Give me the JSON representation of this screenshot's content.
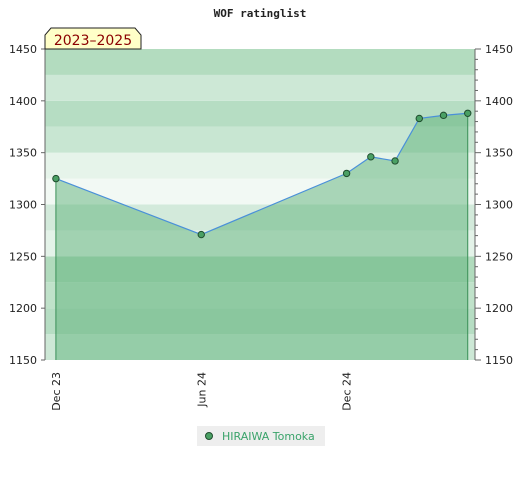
{
  "chart_data": {
    "type": "area",
    "title": "WOF ratinglist",
    "period_badge": "2023–2025",
    "ylim": [
      1150,
      1450
    ],
    "y_ticks": [
      1150,
      1200,
      1250,
      1300,
      1350,
      1400,
      1450
    ],
    "x_ticks": [
      {
        "label": "Dec 23",
        "pos": 0
      },
      {
        "label": "Jun 24",
        "pos": 6
      },
      {
        "label": "Dec 24",
        "pos": 12
      }
    ],
    "xlim": [
      -0.45,
      17.3
    ],
    "series": [
      {
        "name": "HIRAIWA Tomoka",
        "x": [
          0,
          6,
          12,
          13,
          14,
          15,
          16,
          17
        ],
        "values": [
          1325,
          1271,
          1330,
          1346,
          1342,
          1383,
          1386,
          1388
        ]
      }
    ],
    "grid": true,
    "legend": "bottom-center",
    "colors": {
      "line": "#4a90d9",
      "fill": "#5db27a",
      "marker": "#4aa064",
      "marker_stroke": "#1f4d2e",
      "band_colors": [
        "#f7fbf8",
        "#e3f2e8",
        "#d4ebdc",
        "#c3e4cd",
        "#b2dcc0",
        "#a2d4b2",
        "#8dcaa0",
        "#7bc290"
      ],
      "badge_bg": "#ffffc8",
      "badge_text": "#8b0000",
      "legend_text": "#3aa36a"
    }
  }
}
